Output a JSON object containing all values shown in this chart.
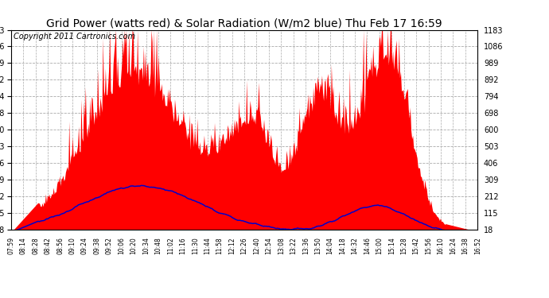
{
  "title": "Grid Power (watts red) & Solar Radiation (W/m2 blue) Thu Feb 17 16:59",
  "copyright": "Copyright 2011 Cartronics.com",
  "bg_color": "#ffffff",
  "plot_bg_color": "#ffffff",
  "y_ticks": [
    17.8,
    114.9,
    212.0,
    309.1,
    406.2,
    503.3,
    600.4,
    697.5,
    794.5,
    891.6,
    988.7,
    1085.8,
    1182.9
  ],
  "x_tick_labels": [
    "07:59",
    "08:14",
    "08:28",
    "08:42",
    "08:56",
    "09:10",
    "09:24",
    "09:38",
    "09:52",
    "10:06",
    "10:20",
    "10:34",
    "10:48",
    "11:02",
    "11:16",
    "11:30",
    "11:44",
    "11:58",
    "12:12",
    "12:26",
    "12:40",
    "12:54",
    "13:08",
    "13:22",
    "13:36",
    "13:50",
    "14:04",
    "14:18",
    "14:32",
    "14:46",
    "15:00",
    "15:14",
    "15:28",
    "15:42",
    "15:56",
    "16:10",
    "16:24",
    "16:38",
    "16:52"
  ],
  "ymin": 17.8,
  "ymax": 1182.9,
  "red_color": "#ff0000",
  "blue_color": "#0000cc",
  "grid_color": "#aaaaaa",
  "title_fontsize": 10,
  "copyright_fontsize": 7,
  "n_points": 540
}
